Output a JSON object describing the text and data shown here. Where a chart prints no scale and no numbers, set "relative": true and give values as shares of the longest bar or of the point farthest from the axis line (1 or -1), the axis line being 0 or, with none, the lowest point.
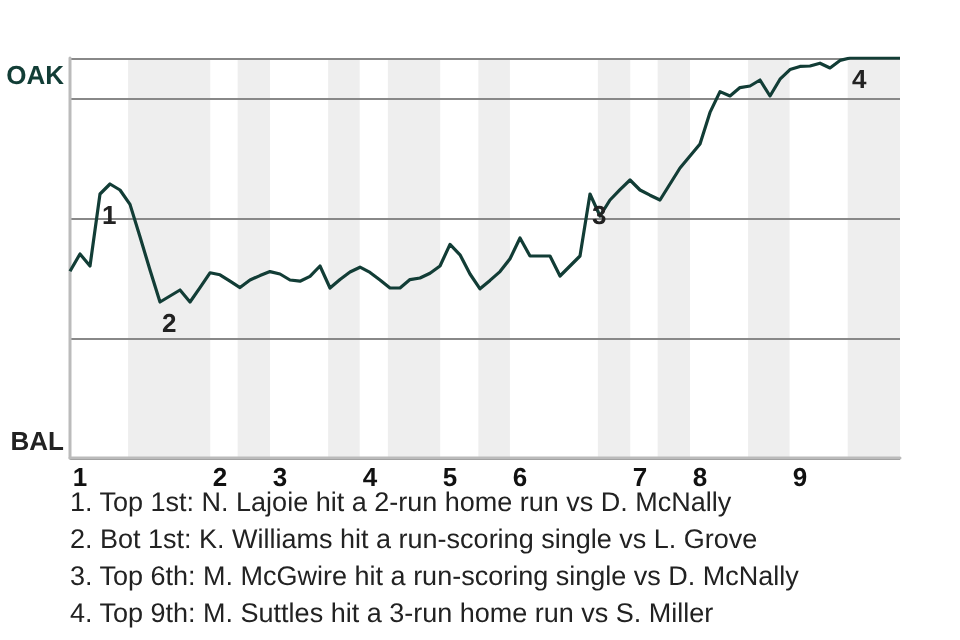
{
  "chart_data": {
    "type": "line",
    "relative": true,
    "categories": [
      null,
      "1",
      null,
      null,
      null,
      null,
      null,
      null,
      null,
      null,
      null,
      null,
      null,
      null,
      null,
      "2",
      null,
      null,
      null,
      null,
      null,
      "3",
      null,
      null,
      null,
      null,
      null,
      null,
      null,
      null,
      "4",
      null,
      null,
      null,
      null,
      null,
      null,
      null,
      "5",
      null,
      null,
      null,
      null,
      null,
      null,
      "6",
      null,
      null,
      null,
      null,
      null,
      null,
      null,
      null,
      null,
      null,
      null,
      "7",
      null,
      null,
      null,
      null,
      null,
      "8",
      null,
      null,
      null,
      null,
      null,
      null,
      null,
      null,
      null,
      "9",
      null,
      null,
      null,
      null,
      null,
      null,
      null,
      null,
      null,
      null
    ],
    "series": [
      {
        "color": "#123d36",
        "values": [
          0.467,
          0.51,
          0.48,
          0.66,
          0.685,
          0.67,
          0.634,
          0.553,
          0.47,
          0.39,
          0.405,
          0.42,
          0.39,
          0.426,
          0.463,
          0.458,
          0.442,
          0.426,
          0.445,
          0.456,
          0.466,
          0.46,
          0.445,
          0.442,
          0.454,
          0.48,
          0.425,
          0.446,
          0.465,
          0.477,
          0.464,
          0.445,
          0.425,
          0.425,
          0.446,
          0.45,
          0.462,
          0.48,
          0.534,
          0.508,
          0.46,
          0.423,
          0.444,
          0.466,
          0.498,
          0.55,
          0.505,
          0.505,
          0.505,
          0.455,
          0.48,
          0.505,
          0.66,
          0.605,
          0.645,
          0.671,
          0.695,
          0.67,
          0.657,
          0.645,
          0.685,
          0.725,
          0.755,
          0.785,
          0.864,
          0.916,
          0.905,
          0.926,
          0.93,
          0.945,
          0.905,
          0.947,
          0.971,
          0.979,
          0.98,
          0.987,
          0.975,
          0.994,
          1,
          1,
          1,
          1,
          1,
          1
        ]
      }
    ],
    "grid": "y",
    "marker": "none",
    "annotations": [
      {
        "text": "1",
        "y": 0.66
      },
      {
        "text": "2",
        "y": 0.39
      },
      {
        "text": "3",
        "y": 0.66
      },
      {
        "text": "4",
        "y": 1
      },
      "OAK",
      "BAL",
      "1. Top 1st: N. Lajoie hit a 2-run home run vs D. McNally",
      "2. Bot 1st: K. Williams hit a run-scoring single vs L. Grove",
      "3. Top 6th: M. McGwire hit a run-scoring single vs D. McNally",
      "4. Top 9th: M. Suttles hit a 3-run home run vs S. Miller"
    ]
  }
}
